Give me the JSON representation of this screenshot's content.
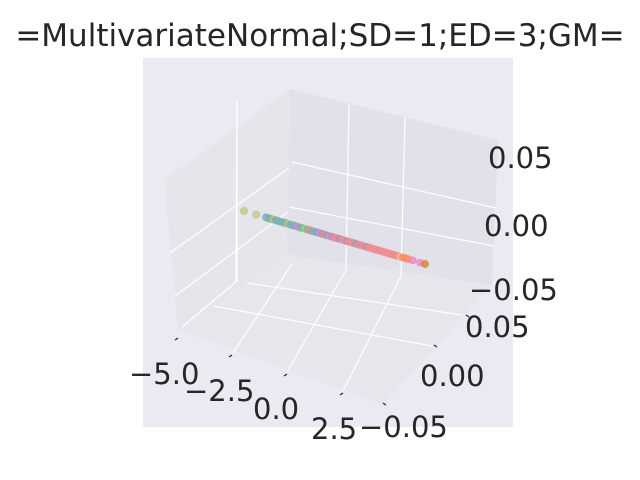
{
  "chart_data": {
    "type": "scatter",
    "projection": "3d",
    "title": "=MultivariateNormal;SD=1;ED=3;GM=",
    "x_ticks": [
      "−5.0",
      "−2.5",
      "0.0",
      "2.5"
    ],
    "y_ticks": [
      "−0.05",
      "0.00",
      "0.05"
    ],
    "z_ticks": [
      "−0.05",
      "0.00",
      "0.05"
    ],
    "xlim": [
      -5.5,
      3.5
    ],
    "ylim": [
      -0.06,
      0.06
    ],
    "zlim": [
      -0.06,
      0.06
    ],
    "grid": true,
    "x_values": [
      -4.4,
      -3.9,
      -3.5,
      -3.4,
      -3.3,
      -3.2,
      -3.1,
      -3.0,
      -2.9,
      -2.8,
      -2.7,
      -2.6,
      -2.5,
      -2.4,
      -2.3,
      -2.2,
      -2.1,
      -2.0,
      -1.9,
      -1.8,
      -1.7,
      -1.6,
      -1.5,
      -1.4,
      -1.3,
      -1.2,
      -1.1,
      -1.0,
      -0.9,
      -0.8,
      -0.7,
      -0.6,
      -0.5,
      -0.4,
      -0.3,
      -0.2,
      -0.1,
      0.0,
      0.1,
      0.2,
      0.3,
      0.4,
      0.5,
      0.6,
      0.7,
      0.8,
      0.9,
      1.0,
      1.1,
      1.2,
      1.3,
      1.4,
      1.5,
      1.6,
      1.7,
      1.8,
      1.9,
      2.0,
      2.1,
      2.2,
      2.3,
      2.5,
      2.8,
      3.0
    ],
    "point_colors": [
      "#bcbd5a",
      "#bcbd5a",
      "#8da0cb",
      "#66c2a5",
      "#8da0cb",
      "#a6d854",
      "#8da0cb",
      "#66c2a5",
      "#8da0cb",
      "#66c2a5",
      "#8da0cb",
      "#a6d854",
      "#8da0cb",
      "#66c2a5",
      "#8da0cb",
      "#e78ac3",
      "#8da0cb",
      "#66c2a5",
      "#a6d854",
      "#8da0cb",
      "#fc8d62",
      "#8da0cb",
      "#66c2a5",
      "#8da0cb",
      "#e78ac3",
      "#8da0cb",
      "#fc8d62",
      "#8da0cb",
      "#e78ac3",
      "#8da0cb",
      "#fc8d62",
      "#e78ac3",
      "#8da0cb",
      "#fc8d62",
      "#e78ac3",
      "#8da0cb",
      "#fc8d62",
      "#e78ac3",
      "#fc8d62",
      "#8da0cb",
      "#e78ac3",
      "#fc8d62",
      "#e78ac3",
      "#8da0cb",
      "#fc8d62",
      "#e78ac3",
      "#fc8d62",
      "#e78ac3",
      "#fc8d62",
      "#e78ac3",
      "#fc8d62",
      "#e78ac3",
      "#fc8d62",
      "#e78ac3",
      "#fc8d62",
      "#e78ac3",
      "#fc8d62",
      "#e5c494",
      "#fc8d62",
      "#fc8d62",
      "#fc8d62",
      "#e78ac3",
      "#e78ac3",
      "#d9822b"
    ],
    "colors": {
      "background": "#eaeaf2",
      "pane": "#e3e3eb",
      "grid": "#ffffff",
      "text": "#262626"
    }
  }
}
